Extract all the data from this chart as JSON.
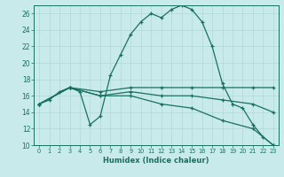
{
  "xlabel": "Humidex (Indice chaleur)",
  "bg_color": "#c8eaea",
  "grid_color": "#b0d8d8",
  "line_color": "#1a7060",
  "xlim": [
    -0.5,
    23.5
  ],
  "ylim": [
    10,
    27
  ],
  "yticks": [
    10,
    12,
    14,
    16,
    18,
    20,
    22,
    24,
    26
  ],
  "xticks": [
    0,
    1,
    2,
    3,
    4,
    5,
    6,
    7,
    8,
    9,
    10,
    11,
    12,
    13,
    14,
    15,
    16,
    17,
    18,
    19,
    20,
    21,
    22,
    23
  ],
  "series": [
    {
      "x": [
        0,
        1,
        2,
        3,
        4,
        5,
        6,
        7,
        8,
        9,
        10,
        11,
        12,
        13,
        14,
        15,
        16,
        17,
        18,
        19,
        20,
        21,
        22,
        23
      ],
      "y": [
        15,
        15.5,
        16.5,
        17,
        16.5,
        12.5,
        13.5,
        18.5,
        21,
        23.5,
        25,
        26,
        25.5,
        26.5,
        27,
        26.5,
        25,
        22,
        17.5,
        15,
        14.5,
        12.5,
        11,
        10
      ]
    },
    {
      "x": [
        0,
        3,
        6,
        9,
        12,
        15,
        18,
        21,
        23
      ],
      "y": [
        15,
        17,
        16.5,
        17,
        17,
        17,
        17,
        17,
        17
      ]
    },
    {
      "x": [
        0,
        3,
        6,
        9,
        12,
        15,
        18,
        21,
        23
      ],
      "y": [
        15,
        17,
        16,
        16.5,
        16,
        16,
        15.5,
        15,
        14
      ]
    },
    {
      "x": [
        0,
        3,
        6,
        9,
        12,
        15,
        18,
        21,
        23
      ],
      "y": [
        15,
        17,
        16,
        16,
        15,
        14.5,
        13,
        12,
        10
      ]
    }
  ]
}
